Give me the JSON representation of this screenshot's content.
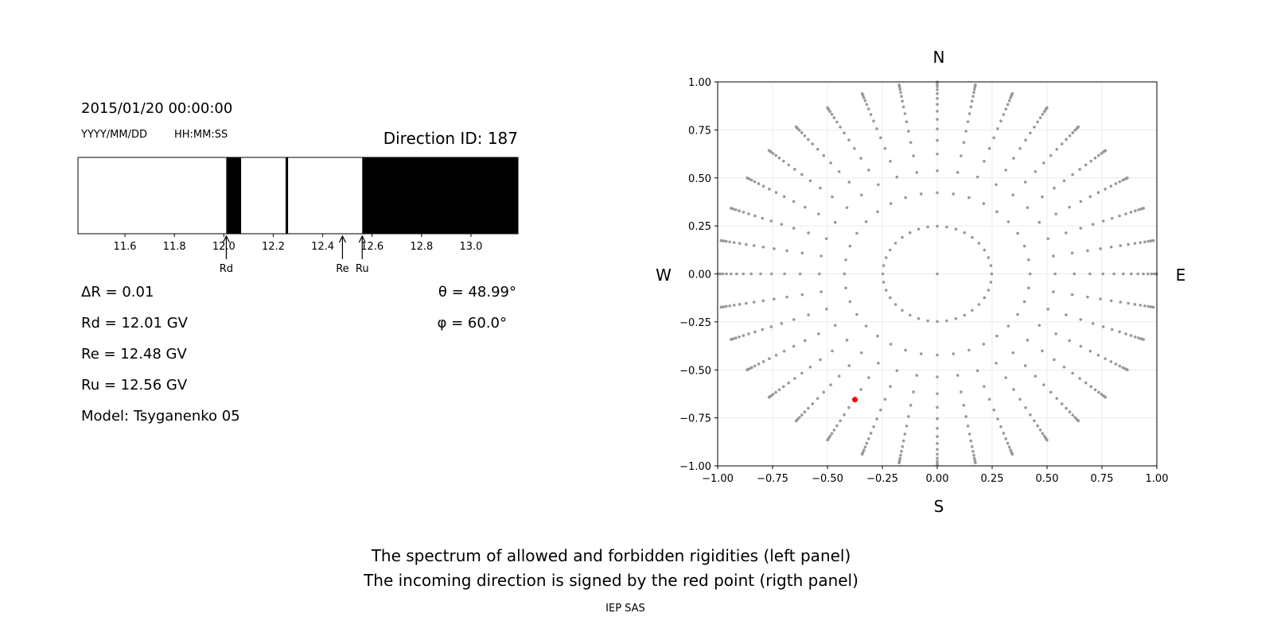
{
  "left_panel": {
    "datetime": "2015/01/20 00:00:00",
    "date_format": "YYYY/MM/DD",
    "time_format": "HH:MM:SS",
    "direction_id": "Direction ID: 187",
    "info_lines": [
      "ΔR = 0.01",
      "Rd = 12.01 GV",
      "Re = 12.48 GV",
      "Ru = 12.56 GV",
      "Model: Tsyganenko 05"
    ],
    "theta": "θ = 48.99°",
    "phi": "φ = 60.0°"
  },
  "right_panel": {
    "north": "N",
    "south": "S",
    "west": "W",
    "east": "E"
  },
  "footer": {
    "line1": "The spectrum of allowed and forbidden rigidities (left panel)",
    "line2": "The incoming direction is signed by the red point (rigth panel)",
    "credit": "IEP SAS"
  },
  "chart_data": [
    {
      "type": "bar",
      "xlim": [
        11.41,
        13.19
      ],
      "xticks": [
        11.6,
        11.8,
        12.0,
        12.2,
        12.4,
        12.6,
        12.8,
        13.0
      ],
      "xtick_labels": [
        "11.6",
        "11.8",
        "12.0",
        "12.2",
        "12.4",
        "12.6",
        "12.8",
        "13.0"
      ],
      "forbidden_bands": [
        [
          12.01,
          12.07
        ],
        [
          12.25,
          12.26
        ],
        [
          12.56,
          13.19
        ]
      ],
      "band_color": "#000000",
      "allowed_color": "#ffffff",
      "markers": [
        {
          "label": "Rd",
          "value": 12.01
        },
        {
          "label": "Re",
          "value": 12.48
        },
        {
          "label": "Ru",
          "value": 12.56
        }
      ]
    },
    {
      "type": "scatter",
      "xlim": [
        -1.0,
        1.0
      ],
      "ylim": [
        -1.0,
        1.0
      ],
      "ticks": [
        -1.0,
        -0.75,
        -0.5,
        -0.25,
        0.0,
        0.25,
        0.5,
        0.75,
        1.0
      ],
      "tick_labels": [
        "−1.00",
        "−0.75",
        "−0.50",
        "−0.25",
        "0.00",
        "0.25",
        "0.50",
        "0.75",
        "1.00"
      ],
      "grid": true,
      "direction_grid": {
        "rings": 16,
        "azimuth_step_deg": 10,
        "center_point": true
      },
      "point_color": "#999999",
      "incoming_point": {
        "x": -0.375,
        "y": -0.655,
        "color": "#ff0000"
      }
    }
  ]
}
